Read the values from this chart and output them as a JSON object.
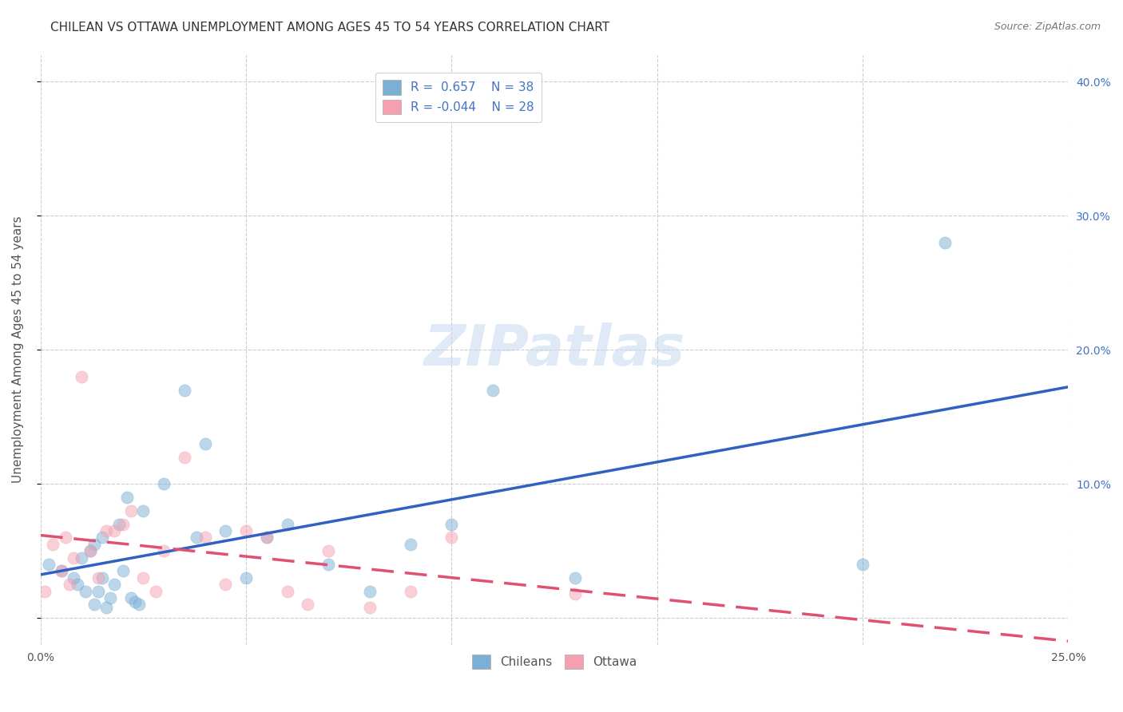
{
  "title": "CHILEAN VS OTTAWA UNEMPLOYMENT AMONG AGES 45 TO 54 YEARS CORRELATION CHART",
  "source": "Source: ZipAtlas.com",
  "ylabel": "Unemployment Among Ages 45 to 54 years",
  "xlim": [
    0.0,
    0.25
  ],
  "ylim": [
    -0.02,
    0.42
  ],
  "x_ticks": [
    0.0,
    0.05,
    0.1,
    0.15,
    0.2,
    0.25
  ],
  "y_ticks": [
    0.0,
    0.1,
    0.2,
    0.3,
    0.4
  ],
  "grid_color": "#cccccc",
  "background_color": "#ffffff",
  "watermark": "ZIPatlas",
  "legend_r_chilean": "0.657",
  "legend_n_chilean": "38",
  "legend_r_ottawa": "-0.044",
  "legend_n_ottawa": "28",
  "chilean_color": "#7bafd4",
  "ottawa_color": "#f4a0b0",
  "chilean_line_color": "#3060c0",
  "ottawa_line_color": "#e05070",
  "chilean_scatter_x": [
    0.002,
    0.005,
    0.008,
    0.009,
    0.01,
    0.011,
    0.012,
    0.013,
    0.013,
    0.014,
    0.015,
    0.015,
    0.016,
    0.017,
    0.018,
    0.019,
    0.02,
    0.021,
    0.022,
    0.023,
    0.024,
    0.025,
    0.03,
    0.035,
    0.038,
    0.04,
    0.045,
    0.05,
    0.055,
    0.06,
    0.07,
    0.08,
    0.09,
    0.1,
    0.11,
    0.13,
    0.2,
    0.22
  ],
  "chilean_scatter_y": [
    0.04,
    0.035,
    0.03,
    0.025,
    0.045,
    0.02,
    0.05,
    0.01,
    0.055,
    0.02,
    0.03,
    0.06,
    0.008,
    0.015,
    0.025,
    0.07,
    0.035,
    0.09,
    0.015,
    0.012,
    0.01,
    0.08,
    0.1,
    0.17,
    0.06,
    0.13,
    0.065,
    0.03,
    0.06,
    0.07,
    0.04,
    0.02,
    0.055,
    0.07,
    0.17,
    0.03,
    0.04,
    0.28
  ],
  "ottawa_scatter_x": [
    0.001,
    0.003,
    0.005,
    0.006,
    0.007,
    0.008,
    0.01,
    0.012,
    0.014,
    0.016,
    0.018,
    0.02,
    0.022,
    0.025,
    0.028,
    0.03,
    0.035,
    0.04,
    0.045,
    0.05,
    0.055,
    0.06,
    0.065,
    0.07,
    0.08,
    0.09,
    0.1,
    0.13
  ],
  "ottawa_scatter_y": [
    0.02,
    0.055,
    0.035,
    0.06,
    0.025,
    0.045,
    0.18,
    0.05,
    0.03,
    0.065,
    0.065,
    0.07,
    0.08,
    0.03,
    0.02,
    0.05,
    0.12,
    0.06,
    0.025,
    0.065,
    0.06,
    0.02,
    0.01,
    0.05,
    0.008,
    0.02,
    0.06,
    0.018
  ],
  "title_fontsize": 11,
  "axis_label_fontsize": 11,
  "tick_fontsize": 10,
  "legend_fontsize": 11,
  "marker_size": 120,
  "marker_alpha": 0.5,
  "line_width": 2.5
}
